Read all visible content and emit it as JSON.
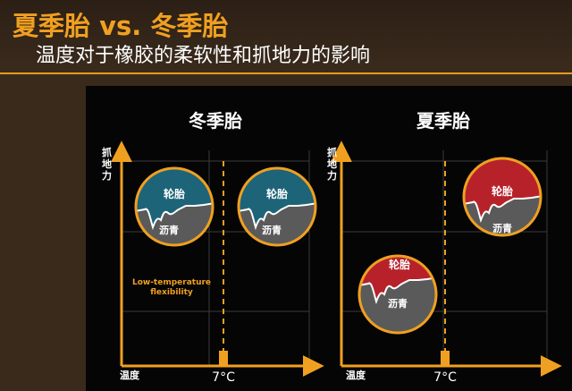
{
  "header": {
    "title": "夏季胎 vs. 冬季胎",
    "subtitle": "温度对于橡胶的柔软性和抓地力的影响"
  },
  "colors": {
    "accent": "#f0a020",
    "winter_tire": "#1d6478",
    "summer_tire": "#b7222a",
    "asphalt": "#5a5a5a"
  },
  "panels": [
    {
      "title": "冬季胎",
      "y_axis_label": "抓地力",
      "x_axis_label": "温度",
      "threshold_label": "7°C",
      "annotation": "Low-temperature flexibility",
      "circles": [
        {
          "tire_label": "轮胎",
          "road_label": "沥青"
        },
        {
          "tire_label": "轮胎",
          "road_label": "沥青"
        }
      ]
    },
    {
      "title": "夏季胎",
      "y_axis_label": "抓地力",
      "x_axis_label": "温度",
      "threshold_label": "7°C",
      "circles": [
        {
          "tire_label": "轮胎",
          "road_label": "沥青"
        },
        {
          "tire_label": "轮胎",
          "road_label": "沥青"
        }
      ]
    }
  ]
}
